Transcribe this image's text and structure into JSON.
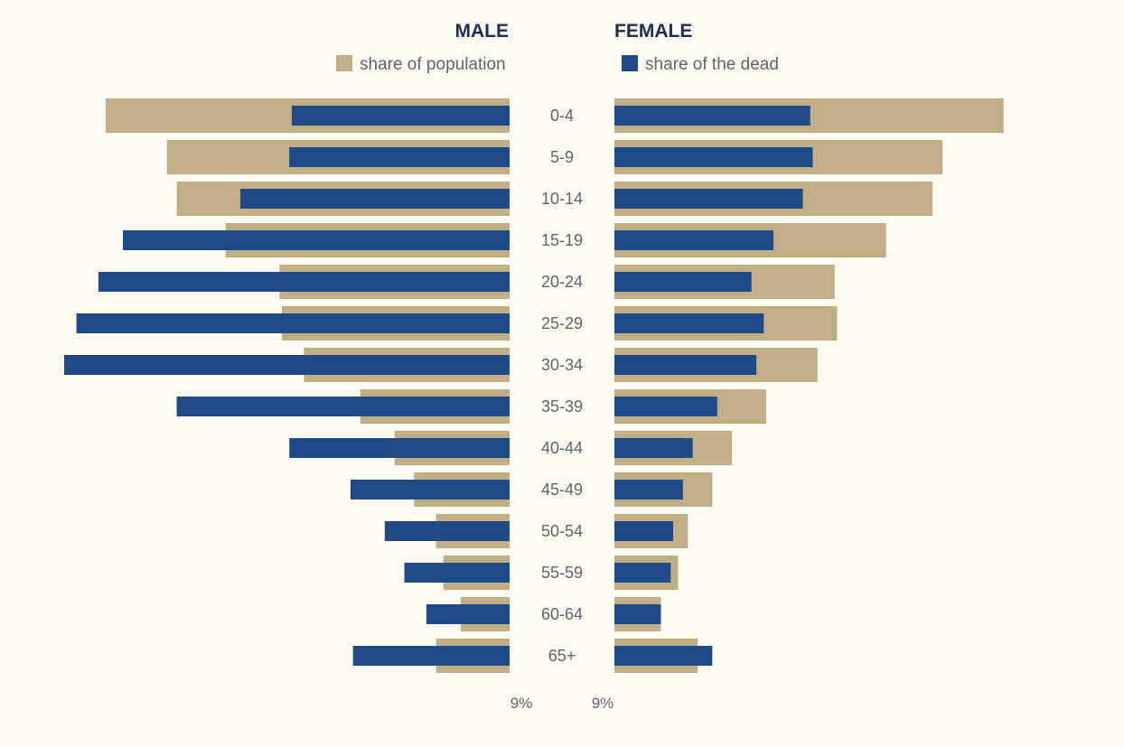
{
  "colors": {
    "background": "#fffbf0",
    "population": "#c1ae86",
    "dead": "#1f4a85",
    "title": "#1b2f55",
    "label": "#5d6470"
  },
  "chart_data": {
    "type": "bar",
    "orientation": "horizontal",
    "layout": "population-pyramid",
    "categories": [
      "0-4",
      "5-9",
      "10-14",
      "15-19",
      "20-24",
      "25-29",
      "30-34",
      "35-39",
      "40-44",
      "45-49",
      "50-54",
      "55-59",
      "60-64",
      "65+"
    ],
    "sides": [
      {
        "title": "MALE",
        "series": [
          {
            "name": "share of population",
            "values": [
              16.5,
              14.0,
              13.6,
              11.6,
              9.4,
              9.3,
              8.4,
              6.1,
              4.7,
              3.9,
              3.0,
              2.7,
              2.0,
              3.0
            ]
          },
          {
            "name": "share of the dead",
            "values": [
              8.9,
              9.0,
              11.0,
              15.8,
              16.8,
              17.7,
              18.2,
              13.6,
              9.0,
              6.5,
              5.1,
              4.3,
              3.4,
              6.4
            ]
          }
        ]
      },
      {
        "title": "FEMALE",
        "series": [
          {
            "name": "share of population",
            "values": [
              15.9,
              13.4,
              13.0,
              11.1,
              9.0,
              9.1,
              8.3,
              6.2,
              4.8,
              4.0,
              3.0,
              2.6,
              1.9,
              3.4
            ]
          },
          {
            "name": "share of the dead",
            "values": [
              8.0,
              8.1,
              7.7,
              6.5,
              5.6,
              6.1,
              5.8,
              4.2,
              3.2,
              2.8,
              2.4,
              2.3,
              1.9,
              4.0
            ]
          }
        ]
      }
    ],
    "legend": [
      {
        "label": "share of population",
        "placement": "top-left"
      },
      {
        "label": "share of the dead",
        "placement": "top-right"
      }
    ],
    "tick": {
      "value": 9,
      "label": "9%"
    },
    "xlim": [
      0,
      18.2
    ]
  }
}
